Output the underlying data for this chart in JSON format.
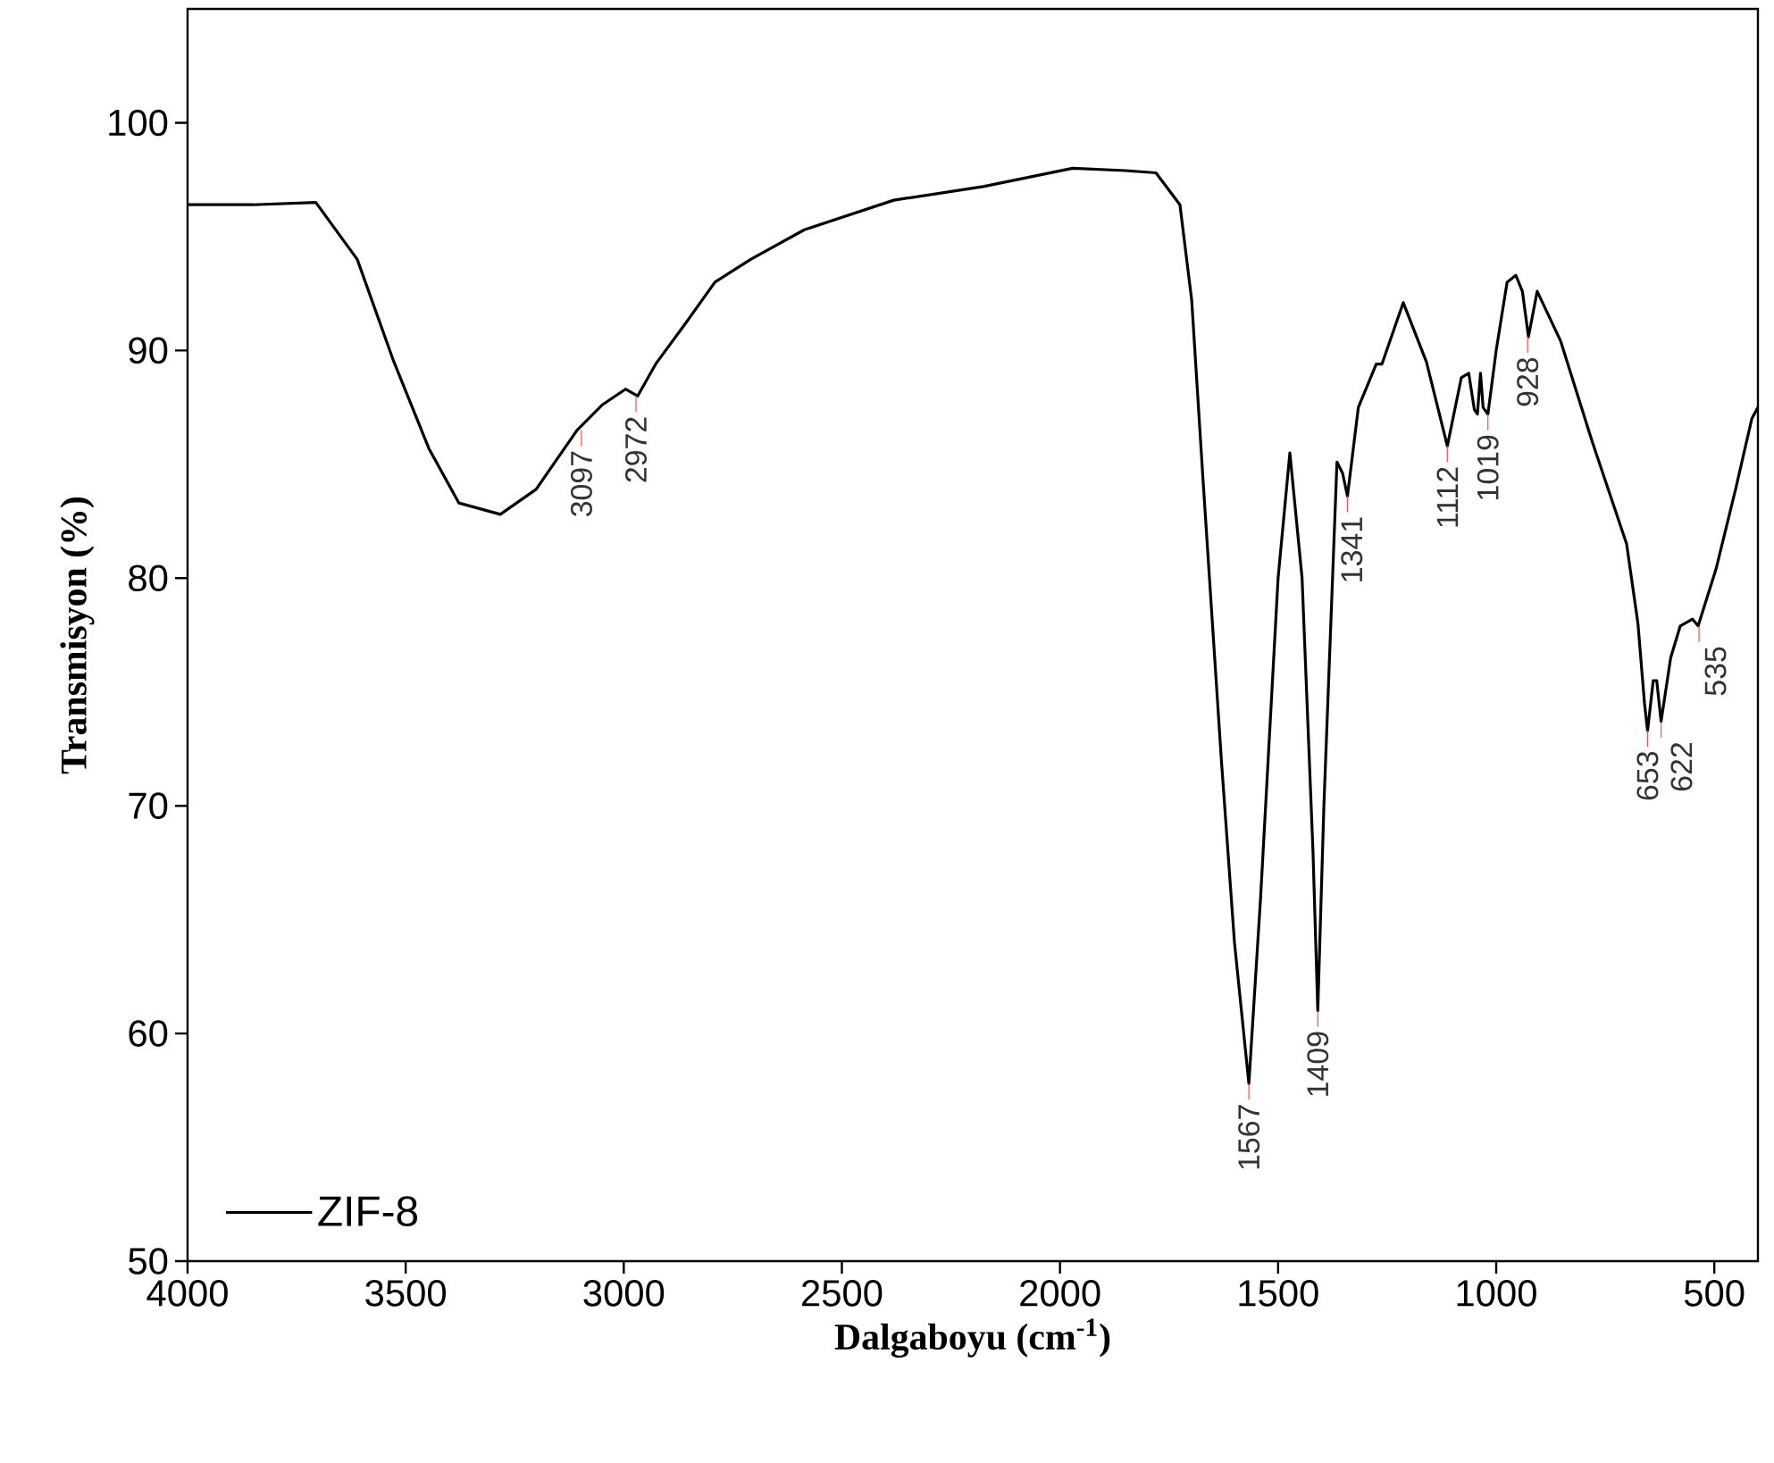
{
  "chart_data": {
    "type": "line",
    "xlabel": "Dalgaboyu (cm$^{-1}$)",
    "ylabel": "Transmisyon (%)",
    "xlim": [
      4000,
      400
    ],
    "ylim": [
      50,
      105
    ],
    "xticks": [
      4000,
      3500,
      3000,
      2500,
      2000,
      1500,
      1000,
      500
    ],
    "yticks": [
      50,
      60,
      70,
      80,
      90,
      100
    ],
    "legend": "bottom left",
    "grid": false,
    "marker": "none",
    "line_style": "solid",
    "series": [
      {
        "name": "ZIF-8",
        "color": "#000000",
        "x": [
          4000,
          3850,
          3706,
          3611,
          3529,
          3447,
          3378,
          3283,
          3201,
          3107,
          3050,
          2996,
          2968,
          2927,
          2858,
          2791,
          2709,
          2586,
          2381,
          2176,
          1971,
          1850,
          1780,
          1725,
          1698,
          1672,
          1630,
          1600,
          1567,
          1540,
          1500,
          1473,
          1445,
          1420,
          1409,
          1395,
          1365,
          1352,
          1341,
          1316,
          1275,
          1262,
          1213,
          1160,
          1112,
          1080,
          1063,
          1050,
          1043,
          1036,
          1030,
          1019,
          1000,
          975,
          955,
          940,
          926,
          906,
          852,
          780,
          701,
          675,
          660,
          653,
          640,
          632,
          622,
          600,
          578,
          550,
          537,
          496,
          450,
          414,
          400
        ],
        "values": [
          96.4,
          96.4,
          96.5,
          94.0,
          89.6,
          85.7,
          83.3,
          82.8,
          83.9,
          86.5,
          87.6,
          88.3,
          88.0,
          89.4,
          91.2,
          93.0,
          94.0,
          95.3,
          96.6,
          97.2,
          98.0,
          97.9,
          97.8,
          96.4,
          92.2,
          84.3,
          72.0,
          64.0,
          57.8,
          66.0,
          80.0,
          85.5,
          80.0,
          68.0,
          61.0,
          70.0,
          85.1,
          84.6,
          83.6,
          87.5,
          89.4,
          89.4,
          92.1,
          89.5,
          85.8,
          88.8,
          89.0,
          87.4,
          87.2,
          89.0,
          87.5,
          87.2,
          90.0,
          93.0,
          93.3,
          92.6,
          90.6,
          92.6,
          90.4,
          86.0,
          81.5,
          78.0,
          74.5,
          73.3,
          75.5,
          75.5,
          73.7,
          76.5,
          77.9,
          78.2,
          77.9,
          80.4,
          84.0,
          87.0,
          87.5
        ]
      }
    ],
    "annotations": [
      {
        "text": "3097",
        "x": 3097,
        "y": 86.5
      },
      {
        "text": "2972",
        "x": 2972,
        "y": 88.0
      },
      {
        "text": "1567",
        "x": 1567,
        "y": 57.8
      },
      {
        "text": "1409",
        "x": 1409,
        "y": 61.0
      },
      {
        "text": "1341",
        "x": 1341,
        "y": 83.6
      },
      {
        "text": "1112",
        "x": 1112,
        "y": 85.8
      },
      {
        "text": "1019",
        "x": 1019,
        "y": 87.2
      },
      {
        "text": "928",
        "x": 928,
        "y": 90.6
      },
      {
        "text": "653",
        "x": 653,
        "y": 73.3
      },
      {
        "text": "622",
        "x": 622,
        "y": 73.7
      },
      {
        "text": "535",
        "x": 535,
        "y": 77.9
      }
    ]
  }
}
